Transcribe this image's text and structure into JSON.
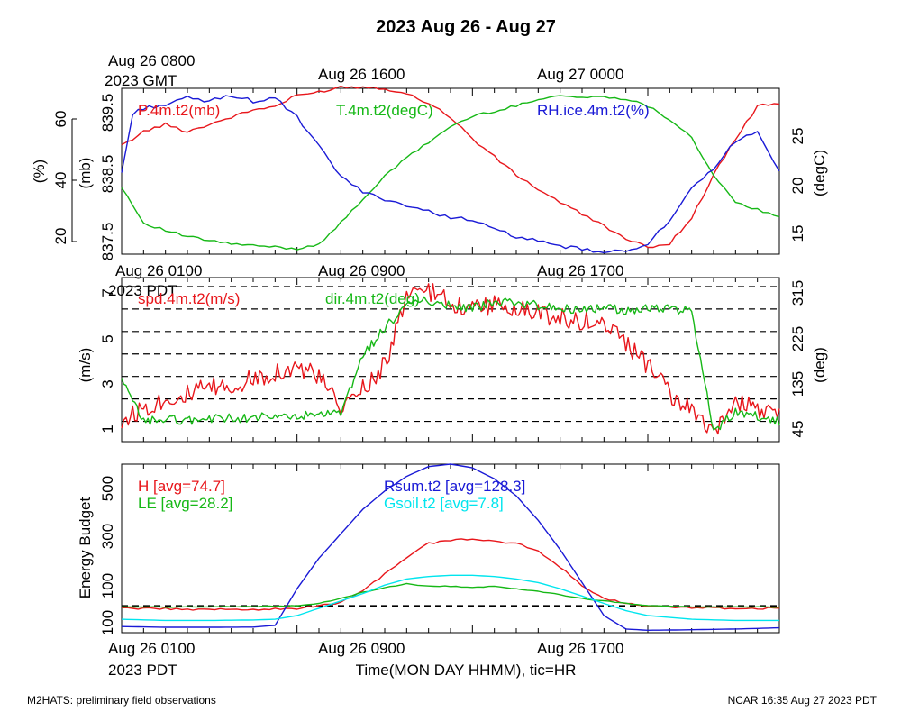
{
  "title": "2023 Aug 26 - Aug 27",
  "footer": {
    "left": "M2HATS: preliminary field observations",
    "right": "NCAR 16:35 Aug 27 2023 PDT"
  },
  "colors": {
    "red": "#e8161b",
    "green": "#16b816",
    "blue": "#1a1ad6",
    "cyan": "#00e5ee",
    "black": "#000000"
  },
  "chart_data": [
    {
      "type": "line",
      "panel": "pressure-temperature-humidity",
      "top_time_labels": [
        "Aug 26 0800",
        "Aug 26 1600",
        "Aug 27 0000"
      ],
      "top_time_sublabel": "2023 GMT",
      "time_range_hours_pdt": [
        0,
        30
      ],
      "axes": {
        "rh": {
          "label": "(%)",
          "ticks": [
            "20",
            "40",
            "60"
          ],
          "range": [
            17,
            68
          ]
        },
        "pressure": {
          "label": "(mb)",
          "ticks": [
            "837.5",
            "838.5",
            "839.5"
          ],
          "range": [
            837.4,
            839.7
          ]
        },
        "temperature": {
          "label": "(degC)",
          "ticks": [
            "15",
            "20",
            "25"
          ],
          "range": [
            13.5,
            29.5
          ]
        }
      },
      "series": [
        {
          "name": "P.4m.t2(mb)",
          "axis": "pressure",
          "color": "red",
          "x": [
            0,
            1,
            2,
            3,
            4,
            5,
            6,
            7,
            8,
            9,
            10,
            11,
            12,
            13,
            14,
            15,
            16,
            17,
            18,
            19,
            20,
            21,
            22,
            23,
            24,
            25,
            26,
            27,
            28,
            29,
            30
          ],
          "y": [
            838.9,
            839.1,
            839.2,
            839.1,
            839.2,
            839.3,
            839.4,
            839.45,
            839.6,
            839.65,
            839.72,
            839.72,
            839.7,
            839.62,
            839.5,
            839.3,
            839.0,
            838.75,
            838.5,
            838.3,
            838.12,
            837.95,
            837.8,
            837.6,
            837.5,
            837.55,
            837.9,
            838.5,
            839.0,
            839.45,
            839.5
          ]
        },
        {
          "name": "T.4m.t2(degC)",
          "axis": "temperature",
          "color": "green",
          "x": [
            0,
            1,
            2,
            3,
            4,
            5,
            6,
            7,
            8,
            9,
            10,
            11,
            12,
            13,
            14,
            15,
            16,
            17,
            18,
            19,
            20,
            21,
            22,
            23,
            24,
            25,
            26,
            27,
            28,
            29,
            30
          ],
          "y": [
            20,
            16.5,
            15.8,
            15.2,
            14.8,
            14.5,
            14.3,
            14.2,
            14.0,
            14.5,
            16.5,
            18.8,
            21.0,
            22.8,
            24.3,
            25.8,
            26.8,
            27.3,
            27.8,
            28.5,
            28.8,
            28.6,
            28.7,
            28.5,
            27.8,
            26.5,
            24.8,
            21.0,
            18.5,
            17.8,
            17.0
          ]
        },
        {
          "name": "RH.ice.4m.t2(%)",
          "axis": "rh",
          "color": "blue",
          "x": [
            0,
            0.5,
            1,
            2,
            3,
            4,
            5,
            6,
            7,
            8,
            9,
            10,
            11,
            12,
            13,
            14,
            15,
            16,
            17,
            18,
            19,
            20,
            21,
            22,
            23,
            24,
            25,
            26,
            27,
            28,
            29,
            30
          ],
          "y": [
            42,
            60,
            62,
            63,
            65,
            64,
            66,
            64,
            65,
            59,
            50,
            41,
            36,
            34,
            32,
            30,
            28.5,
            27.5,
            24.5,
            22.5,
            20.8,
            19.5,
            18.5,
            17.5,
            17.8,
            20.5,
            27,
            37,
            43,
            52,
            55,
            42
          ]
        }
      ]
    },
    {
      "type": "line",
      "panel": "wind",
      "top_time_labels": [
        "Aug 26 0100",
        "Aug 26 0900",
        "Aug 26 1700"
      ],
      "top_time_sublabel": "2023 PDT",
      "axes": {
        "speed": {
          "label": "(m/s)",
          "ticks": [
            "1",
            "3",
            "5",
            "7"
          ],
          "range": [
            0.1,
            7.4
          ]
        },
        "direction": {
          "label": "(deg)",
          "ticks": [
            "45",
            "135",
            "225",
            "315"
          ],
          "range": [
            20,
            345
          ]
        }
      },
      "grid_y_speed": [
        1,
        2,
        3,
        4,
        5,
        6,
        7
      ],
      "series": [
        {
          "name": "spd.4m.t2(m/s)",
          "axis": "speed",
          "color": "red",
          "x": [
            0,
            1,
            2,
            3,
            4,
            5,
            6,
            7,
            8,
            9,
            10,
            11,
            12,
            13,
            14,
            15,
            16,
            17,
            18,
            19,
            20,
            21,
            22,
            23,
            24,
            25,
            26,
            27,
            28,
            29,
            30
          ],
          "y": [
            1.0,
            1.6,
            2.0,
            2.2,
            2.5,
            2.5,
            2.9,
            3.2,
            3.4,
            3.0,
            1.5,
            2.5,
            3.5,
            6.5,
            6.8,
            6.3,
            6.0,
            6.2,
            6.0,
            5.8,
            5.6,
            5.5,
            5.4,
            4.5,
            3.5,
            2.2,
            1.5,
            0.3,
            1.8,
            1.6,
            1.4
          ]
        },
        {
          "name": "dir.4m.t2(deg)",
          "axis": "direction",
          "color": "green",
          "x": [
            0,
            1,
            2,
            3,
            4,
            5,
            6,
            7,
            8,
            9,
            10,
            11,
            12,
            13,
            14,
            15,
            16,
            17,
            18,
            19,
            20,
            21,
            22,
            23,
            24,
            25,
            26,
            27,
            28,
            29,
            30
          ],
          "y": [
            140,
            60,
            65,
            62,
            65,
            66,
            68,
            68,
            70,
            72,
            75,
            190,
            245,
            290,
            300,
            290,
            285,
            295,
            295,
            290,
            285,
            282,
            285,
            280,
            285,
            282,
            280,
            40,
            80,
            70,
            60
          ]
        }
      ]
    },
    {
      "type": "line",
      "panel": "energy-budget",
      "xlabel": "Time(MON DAY HHMM), tic=HR",
      "bottom_time_labels": [
        "Aug 26 0100",
        "Aug 26 0900",
        "Aug 26 1700"
      ],
      "bottom_time_sublabel": "2023 PDT",
      "ylabel": "Energy Budget",
      "yticks": [
        "100",
        "100",
        "300",
        "500"
      ],
      "ylim": [
        -110,
        580
      ],
      "zero_line": true,
      "series": [
        {
          "name": "H [avg=74.7]",
          "color": "red",
          "x": [
            0,
            2,
            4,
            6,
            8,
            9,
            10,
            11,
            12,
            13,
            14,
            15,
            16,
            17,
            18,
            19,
            20,
            21,
            22,
            23,
            24,
            26,
            28,
            30
          ],
          "y": [
            -10,
            -12,
            -15,
            -15,
            -12,
            0,
            15,
            60,
            130,
            200,
            255,
            270,
            275,
            265,
            255,
            225,
            160,
            80,
            30,
            10,
            0,
            -8,
            -10,
            -10
          ]
        },
        {
          "name": "LE [avg=28.2]",
          "color": "green",
          "x": [
            0,
            2,
            4,
            6,
            8,
            9,
            10,
            11,
            12,
            13,
            14,
            15,
            16,
            17,
            18,
            19,
            20,
            21,
            22,
            23,
            24,
            26,
            28,
            30
          ],
          "y": [
            -5,
            -5,
            -5,
            -3,
            0,
            10,
            30,
            55,
            75,
            90,
            80,
            80,
            75,
            80,
            70,
            60,
            45,
            30,
            20,
            10,
            0,
            -5,
            -5,
            -5
          ]
        },
        {
          "name": "Rsum.t2 [avg=128.3]",
          "color": "blue",
          "x": [
            0,
            2,
            4,
            6,
            7,
            8,
            9,
            10,
            11,
            12,
            13,
            14,
            15,
            16,
            17,
            18,
            19,
            20,
            21,
            22,
            23,
            24,
            26,
            28,
            30
          ],
          "y": [
            -85,
            -88,
            -88,
            -87,
            -80,
            70,
            195,
            295,
            395,
            470,
            530,
            570,
            580,
            565,
            520,
            450,
            350,
            230,
            95,
            -40,
            -95,
            -100,
            -98,
            -95,
            -90
          ]
        },
        {
          "name": "Gsoil.t2 [avg=7.8]",
          "color": "cyan",
          "x": [
            0,
            2,
            4,
            6,
            7,
            8,
            9,
            10,
            11,
            12,
            13,
            14,
            15,
            16,
            17,
            18,
            19,
            20,
            21,
            22,
            23,
            24,
            26,
            28,
            30
          ],
          "y": [
            -55,
            -60,
            -60,
            -58,
            -55,
            -40,
            -10,
            20,
            50,
            85,
            110,
            120,
            125,
            125,
            120,
            110,
            95,
            70,
            40,
            10,
            -20,
            -40,
            -55,
            -60,
            -60
          ]
        }
      ]
    }
  ]
}
